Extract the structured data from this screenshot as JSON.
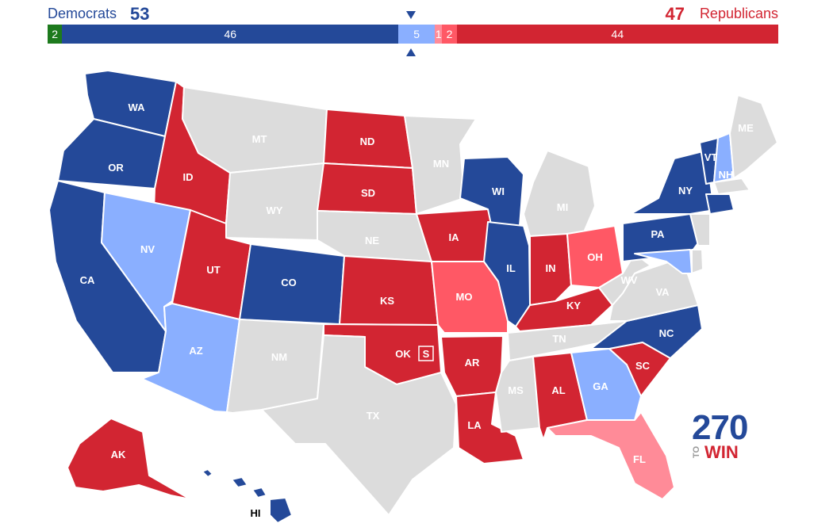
{
  "header": {
    "dem_label": "Democrats",
    "dem_total": "53",
    "rep_total": "47",
    "rep_label": "Republicans"
  },
  "bar": [
    {
      "label": "2",
      "seats": 2,
      "color": "#1d7a1d",
      "meaning": "independent"
    },
    {
      "label": "46",
      "seats": 46,
      "color": "#244999",
      "meaning": "dem-safe"
    },
    {
      "label": "5",
      "seats": 5,
      "color": "#8aafff",
      "meaning": "dem-lean"
    },
    {
      "label": "1",
      "seats": 1,
      "color": "#ff8b98",
      "meaning": "rep-tilt"
    },
    {
      "label": "2",
      "seats": 2,
      "color": "#ff5865",
      "meaning": "rep-lean"
    },
    {
      "label": "44",
      "seats": 44,
      "color": "#d22532",
      "meaning": "rep-safe"
    }
  ],
  "colors": {
    "dem_safe": "#244999",
    "dem_lean": "#8aafff",
    "rep_safe": "#d22532",
    "rep_lean": "#ff5865",
    "rep_tilt": "#ff8b98",
    "no_race": "#dcdcdc",
    "special_marker": "#d22532"
  },
  "states": {
    "WA": {
      "abbr": "WA",
      "color": "#244999"
    },
    "OR": {
      "abbr": "OR",
      "color": "#244999"
    },
    "CA": {
      "abbr": "CA",
      "color": "#244999"
    },
    "ID": {
      "abbr": "ID",
      "color": "#d22532"
    },
    "NV": {
      "abbr": "NV",
      "color": "#8aafff"
    },
    "MT": {
      "abbr": "MT",
      "color": "#dcdcdc"
    },
    "WY": {
      "abbr": "WY",
      "color": "#dcdcdc"
    },
    "UT": {
      "abbr": "UT",
      "color": "#d22532"
    },
    "AZ": {
      "abbr": "AZ",
      "color": "#8aafff"
    },
    "CO": {
      "abbr": "CO",
      "color": "#244999"
    },
    "NM": {
      "abbr": "NM",
      "color": "#dcdcdc"
    },
    "ND": {
      "abbr": "ND",
      "color": "#d22532"
    },
    "SD": {
      "abbr": "SD",
      "color": "#d22532"
    },
    "NE": {
      "abbr": "NE",
      "color": "#dcdcdc"
    },
    "KS": {
      "abbr": "KS",
      "color": "#d22532"
    },
    "OK": {
      "abbr": "OK",
      "color": "#d22532"
    },
    "TX": {
      "abbr": "TX",
      "color": "#dcdcdc"
    },
    "MN": {
      "abbr": "MN",
      "color": "#dcdcdc"
    },
    "IA": {
      "abbr": "IA",
      "color": "#d22532"
    },
    "MO": {
      "abbr": "MO",
      "color": "#ff5865"
    },
    "AR": {
      "abbr": "AR",
      "color": "#d22532"
    },
    "LA": {
      "abbr": "LA",
      "color": "#d22532"
    },
    "WI": {
      "abbr": "WI",
      "color": "#244999"
    },
    "IL": {
      "abbr": "IL",
      "color": "#244999"
    },
    "MI": {
      "abbr": "MI",
      "color": "#dcdcdc"
    },
    "IN": {
      "abbr": "IN",
      "color": "#d22532"
    },
    "OH": {
      "abbr": "OH",
      "color": "#ff5865"
    },
    "KY": {
      "abbr": "KY",
      "color": "#d22532"
    },
    "TN": {
      "abbr": "TN",
      "color": "#dcdcdc"
    },
    "MS": {
      "abbr": "MS",
      "color": "#dcdcdc"
    },
    "AL": {
      "abbr": "AL",
      "color": "#d22532"
    },
    "GA": {
      "abbr": "GA",
      "color": "#8aafff"
    },
    "FL": {
      "abbr": "FL",
      "color": "#ff8b98"
    },
    "SC": {
      "abbr": "SC",
      "color": "#d22532"
    },
    "NC": {
      "abbr": "NC",
      "color": "#244999"
    },
    "VA": {
      "abbr": "VA",
      "color": "#dcdcdc"
    },
    "WV": {
      "abbr": "WV",
      "color": "#dcdcdc"
    },
    "PA": {
      "abbr": "PA",
      "color": "#244999"
    },
    "NY": {
      "abbr": "NY",
      "color": "#244999"
    },
    "VT": {
      "abbr": "VT",
      "color": "#244999"
    },
    "NH": {
      "abbr": "NH",
      "color": "#8aafff"
    },
    "ME": {
      "abbr": "ME",
      "color": "#dcdcdc"
    },
    "MA": {
      "abbr": "",
      "color": "#dcdcdc"
    },
    "CT": {
      "abbr": "",
      "color": "#244999"
    },
    "NJ": {
      "abbr": "",
      "color": "#dcdcdc"
    },
    "MD": {
      "abbr": "",
      "color": "#8aafff"
    },
    "DE": {
      "abbr": "",
      "color": "#dcdcdc"
    },
    "AK": {
      "abbr": "AK",
      "color": "#d22532"
    },
    "HI": {
      "abbr": "HI",
      "color": "#244999"
    }
  },
  "special_marker": {
    "label": "S",
    "state": "OK"
  },
  "logo": {
    "number": "270",
    "to": "TO",
    "win": "WIN"
  }
}
